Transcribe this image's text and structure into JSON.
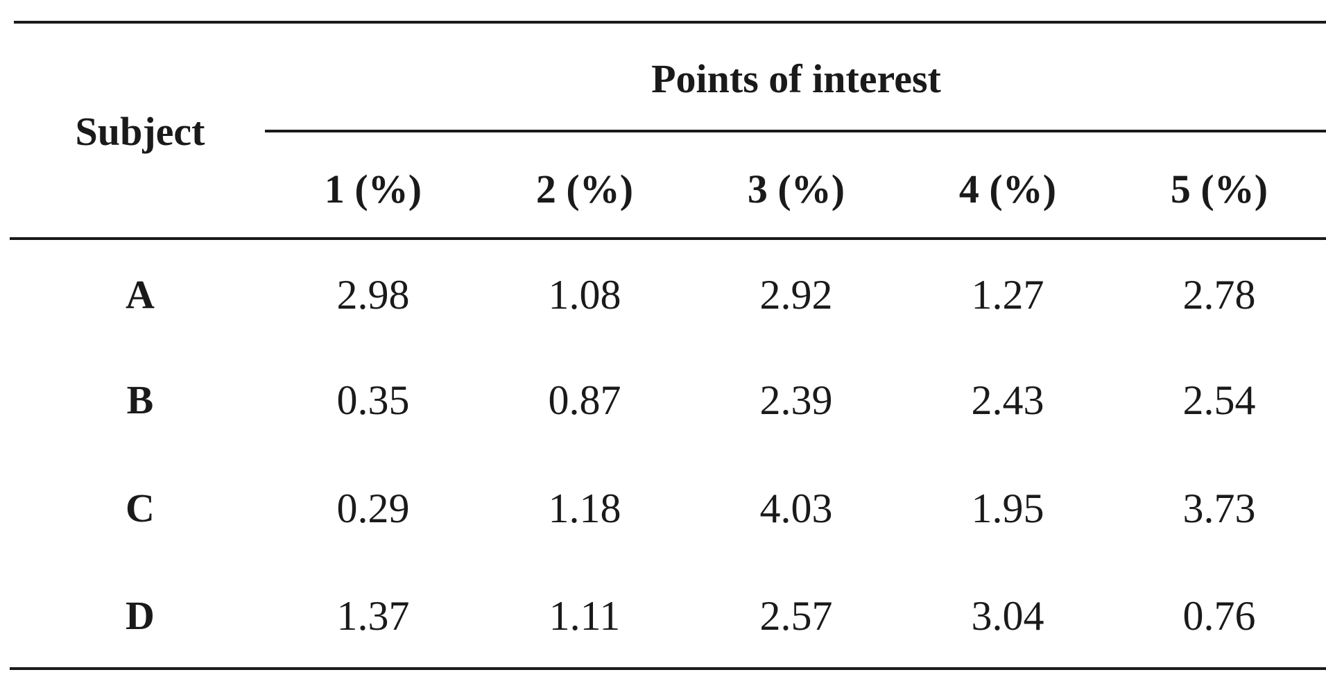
{
  "table": {
    "row_header_label": "Subject",
    "group_header_label": "Points of interest",
    "columns": [
      "1 (%)",
      "2 (%)",
      "3 (%)",
      "4 (%)",
      "5 (%)"
    ],
    "rows": [
      {
        "subject": "A",
        "values": [
          "2.98",
          "1.08",
          "2.92",
          "1.27",
          "2.78"
        ]
      },
      {
        "subject": "B",
        "values": [
          "0.35",
          "0.87",
          "2.39",
          "2.43",
          "2.54"
        ]
      },
      {
        "subject": "C",
        "values": [
          "0.29",
          "1.18",
          "4.03",
          "1.95",
          "3.73"
        ]
      },
      {
        "subject": "D",
        "values": [
          "1.37",
          "1.11",
          "2.57",
          "3.04",
          "0.76"
        ]
      }
    ]
  }
}
